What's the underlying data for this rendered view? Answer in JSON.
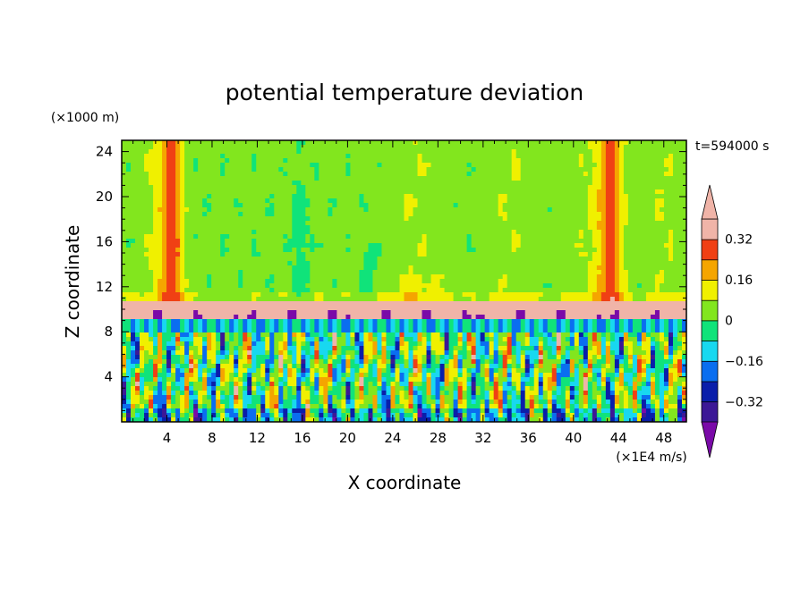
{
  "chart_data": {
    "type": "heatmap",
    "title": "potential temperature deviation",
    "xlabel": "X coordinate",
    "ylabel": "Z coordinate",
    "x_unit": "(×1E4 m/s)",
    "y_unit": "(×1000 m)",
    "time_label": "t=594000 s",
    "xlim": [
      0,
      50
    ],
    "ylim": [
      0,
      25
    ],
    "x_ticks": [
      4,
      8,
      12,
      16,
      20,
      24,
      28,
      32,
      36,
      40,
      44,
      48
    ],
    "y_ticks": [
      4,
      8,
      12,
      16,
      20,
      24
    ],
    "colorbar": {
      "levels": [
        -0.4,
        -0.32,
        -0.24,
        -0.16,
        -0.08,
        0,
        0.08,
        0.16,
        0.24,
        0.32,
        0.4
      ],
      "tick_labels": [
        "0.32",
        "0.16",
        "0",
        "−0.16",
        "−0.32"
      ],
      "tick_values": [
        0.32,
        0.16,
        0,
        -0.16,
        -0.32
      ],
      "colors": [
        "#7a0aa8",
        "#3c1896",
        "#0a1eaa",
        "#0a6ef0",
        "#18d8f0",
        "#10e37a",
        "#82e61e",
        "#f0f000",
        "#f5a500",
        "#f04014",
        "#f0b4a8",
        "#f0b4a8"
      ],
      "extend": "both"
    },
    "grid": false,
    "legend": "right"
  }
}
